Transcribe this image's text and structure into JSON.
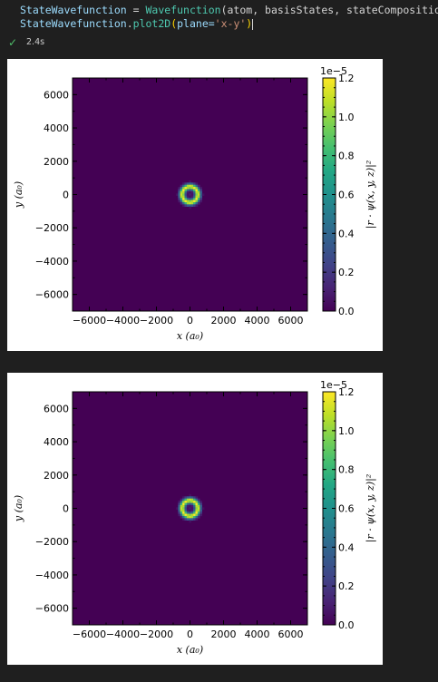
{
  "code": {
    "line1": {
      "var": "StateWavefunction",
      "op": " = ",
      "fn": "Wavefunction",
      "args": "(atom, basisStates, stateComposition)"
    },
    "line2": {
      "obj": "StateWavefunction",
      "dot": ".",
      "method": "plot2D",
      "arg": "plane=",
      "str": "'x-y'"
    }
  },
  "cell_status": {
    "time": "2.4s",
    "icon": "check-icon",
    "color": "#4fbf6a"
  },
  "chart_data": [
    {
      "type": "heatmap",
      "title": "",
      "xlabel": "x (a₀)",
      "ylabel": "y (a₀)",
      "colorbar_label": "|r · ψ(x, y, z)|²",
      "colorbar_scale": "1e−5",
      "xlim": [
        -7000,
        7000
      ],
      "ylim": [
        -7000,
        7000
      ],
      "xticks": [
        "−6000",
        "−4000",
        "−2000",
        "0",
        "2000",
        "4000",
        "6000"
      ],
      "yticks": [
        "6000",
        "4000",
        "2000",
        "0",
        "−2000",
        "−4000",
        "−6000"
      ],
      "colorbar_ticks": [
        "1.2",
        "1.0",
        "0.8",
        "0.6",
        "0.4",
        "0.2",
        "0.0"
      ],
      "colorbar_range": [
        0,
        1.2
      ],
      "feature": {
        "shape": "ring",
        "center": [
          0,
          0
        ],
        "radius": 470,
        "peak": 1.2
      }
    },
    {
      "type": "heatmap",
      "title": "",
      "xlabel": "x (a₀)",
      "ylabel": "y (a₀)",
      "colorbar_label": "|r · ψ(x, y, z)|²",
      "colorbar_scale": "1e−5",
      "xlim": [
        -7000,
        7000
      ],
      "ylim": [
        -7000,
        7000
      ],
      "xticks": [
        "−6000",
        "−4000",
        "−2000",
        "0",
        "2000",
        "4000",
        "6000"
      ],
      "yticks": [
        "6000",
        "4000",
        "2000",
        "0",
        "−2000",
        "−4000",
        "−6000"
      ],
      "colorbar_ticks": [
        "1.2",
        "1.0",
        "0.8",
        "0.6",
        "0.4",
        "0.2",
        "0.0"
      ],
      "colorbar_range": [
        0,
        1.2
      ],
      "feature": {
        "shape": "ring",
        "center": [
          0,
          0
        ],
        "radius": 470,
        "peak": 1.2
      }
    }
  ]
}
